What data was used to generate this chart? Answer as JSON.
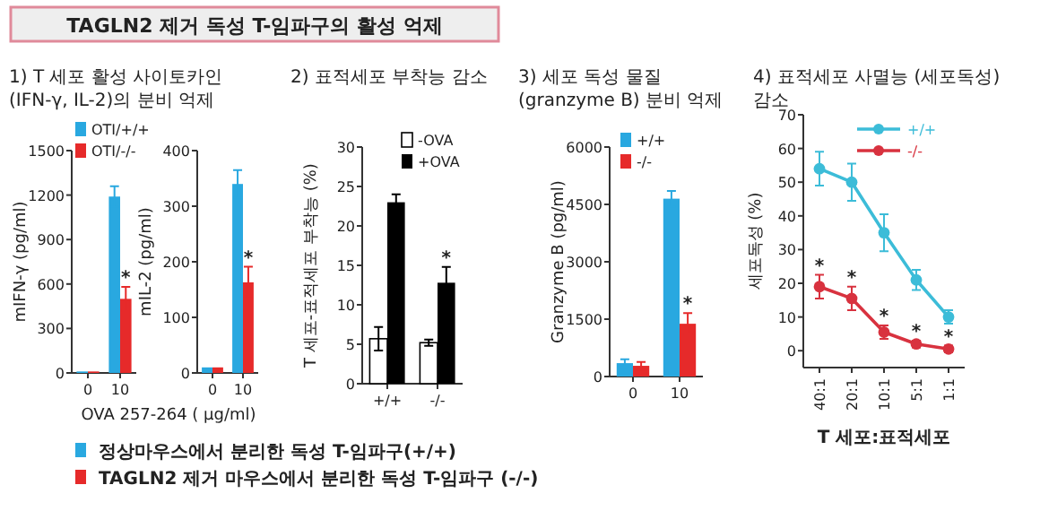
{
  "chart_data": [
    {
      "type": "bar",
      "title": "TAGLN2 제거 독성 T-임파구의 활성 억제",
      "subtitle": "1) T 세포 활성 사이토카인 (IFN-γ, IL-2)의 분비 억제",
      "xlabel": "OVA 257-264 ( μg/ml)",
      "ylabel": "mIFN-γ (pg/ml)",
      "categories": [
        "0",
        "10"
      ],
      "series": [
        {
          "name": "OTI/+/+",
          "color": "#29a8e0",
          "values": [
            10,
            1190
          ],
          "errors": [
            null,
            70
          ]
        },
        {
          "name": "OTI/-/-",
          "color": "#e62a2a",
          "values": [
            10,
            500
          ],
          "errors": [
            null,
            80
          ]
        }
      ],
      "ylim": [
        0,
        1500
      ],
      "yticks": [
        0,
        300,
        600,
        900,
        1200,
        1500
      ],
      "legend": "top",
      "annotations": [
        {
          "text": "*",
          "x": "10",
          "y": 580
        },
        "정상마우스에서 분리한 독성 T-임파구(+/+)",
        "TAGLN2 제거 마우스에서 분리한 독성 T-임파구 (-/-)"
      ]
    },
    {
      "type": "bar",
      "ylabel": "mIL-2 (pg/ml)",
      "categories": [
        "0",
        "10"
      ],
      "series": [
        {
          "color": "#29a8e0",
          "values": [
            10,
            340
          ],
          "errors": [
            null,
            25
          ]
        },
        {
          "color": "#e62a2a",
          "values": [
            10,
            163
          ],
          "errors": [
            null,
            28
          ]
        }
      ],
      "ylim": [
        0,
        400
      ],
      "yticks": [
        0,
        100,
        200,
        300,
        400
      ],
      "annotations": [
        {
          "text": "*",
          "x": "10",
          "y": 191
        }
      ]
    },
    {
      "type": "bar",
      "title": "2) 표적세포 부착능 감소",
      "ylabel": "T 세포-표적세포 부착능 (%)",
      "categories": [
        "+/+",
        "-/-"
      ],
      "series": [
        {
          "name": "-OVA",
          "color": "#ffffff",
          "values": [
            5.7,
            5.2
          ],
          "errors": [
            1.5,
            0.4
          ]
        },
        {
          "name": "+OVA",
          "color": "#000000",
          "values": [
            23,
            12.8
          ],
          "errors": [
            1,
            2
          ]
        }
      ],
      "ylim": [
        0,
        30
      ],
      "yticks": [
        0,
        5,
        10,
        15,
        20,
        25,
        30
      ],
      "legend": "top right",
      "annotations": [
        {
          "text": "*",
          "x": "-/-",
          "y": 14.8
        }
      ]
    },
    {
      "type": "bar",
      "title": "3) 세포 독성 물질 (granzyme B) 분비 억제",
      "ylabel": "Granzyme B (pg/ml)",
      "categories": [
        "0",
        "10"
      ],
      "series": [
        {
          "name": "+/+",
          "color": "#29a8e0",
          "values": [
            350,
            4650
          ],
          "errors": [
            100,
            200
          ]
        },
        {
          "name": "-/-",
          "color": "#e62a2a",
          "values": [
            280,
            1380
          ],
          "errors": [
            100,
            280
          ]
        }
      ],
      "ylim": [
        0,
        6000
      ],
      "yticks": [
        0,
        1500,
        3000,
        4500,
        6000
      ],
      "legend": "top left",
      "annotations": [
        {
          "text": "*",
          "x": "10",
          "y": 1660
        }
      ]
    },
    {
      "type": "line",
      "title": "4) 표적세포 사멸능 (세포독성) 감소",
      "xlabel": "T 세포:표적세포",
      "ylabel": "세포독성 (%)",
      "categories": [
        "40:1",
        "20:1",
        "10:1",
        "5:1",
        "1:1"
      ],
      "series": [
        {
          "name": "+/+",
          "color": "#3cbcd8",
          "values": [
            54,
            50,
            35,
            21,
            10
          ],
          "errors": [
            5,
            5.5,
            5.5,
            3,
            2
          ]
        },
        {
          "name": "-/-",
          "color": "#d8323f",
          "values": [
            19,
            15.5,
            5.5,
            2,
            0.5
          ],
          "errors": [
            3.5,
            3.5,
            2,
            1,
            1
          ]
        }
      ],
      "ylim": [
        -5,
        70
      ],
      "yticks": [
        0,
        10,
        20,
        30,
        40,
        50,
        60,
        70
      ],
      "legend": "top right",
      "marker": "circle",
      "line_style": "solid",
      "annotations": [
        {
          "text": "*",
          "x": "40:1",
          "y": 22.5
        },
        {
          "text": "*",
          "x": "20:1",
          "y": 19
        },
        {
          "text": "*",
          "x": "10:1",
          "y": 7.5
        },
        {
          "text": "*",
          "x": "5:1",
          "y": 3
        },
        {
          "text": "*",
          "x": "1:1",
          "y": 1.5
        }
      ]
    }
  ]
}
